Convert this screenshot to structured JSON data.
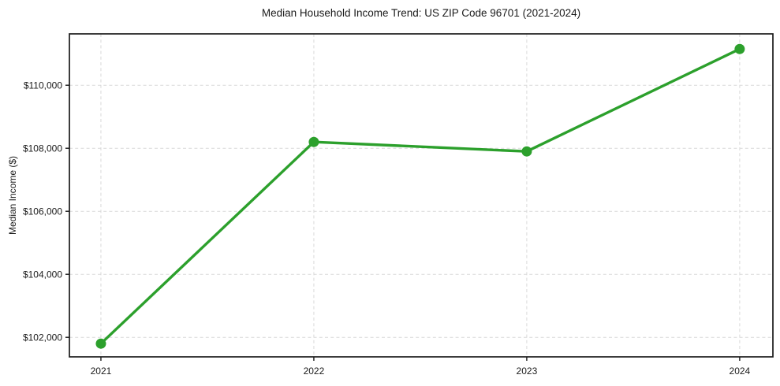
{
  "chart_data": {
    "type": "line",
    "title": "Median Household Income Trend: US ZIP Code 96701 (2021-2024)",
    "xlabel": "",
    "ylabel": "Median Income ($)",
    "x": [
      2021,
      2022,
      2023,
      2024
    ],
    "x_tick_labels": [
      "2021",
      "2022",
      "2023",
      "2024"
    ],
    "values": [
      101800,
      108200,
      107900,
      111150
    ],
    "y_ticks": [
      102000,
      104000,
      106000,
      108000,
      110000
    ],
    "y_tick_labels": [
      "$102,000",
      "$104,000",
      "$106,000",
      "$108,000",
      "$110,000"
    ],
    "xlim": [
      2020.852,
      2024.156
    ],
    "ylim": [
      101380,
      111630
    ],
    "grid": true,
    "legend": false,
    "line_color": "#2ca02c",
    "marker": "circle",
    "grid_color": "#d9d9d9",
    "axis_color": "#1a1a1a",
    "text_color": "#1a1a1a",
    "background_color": "#ffffff"
  }
}
